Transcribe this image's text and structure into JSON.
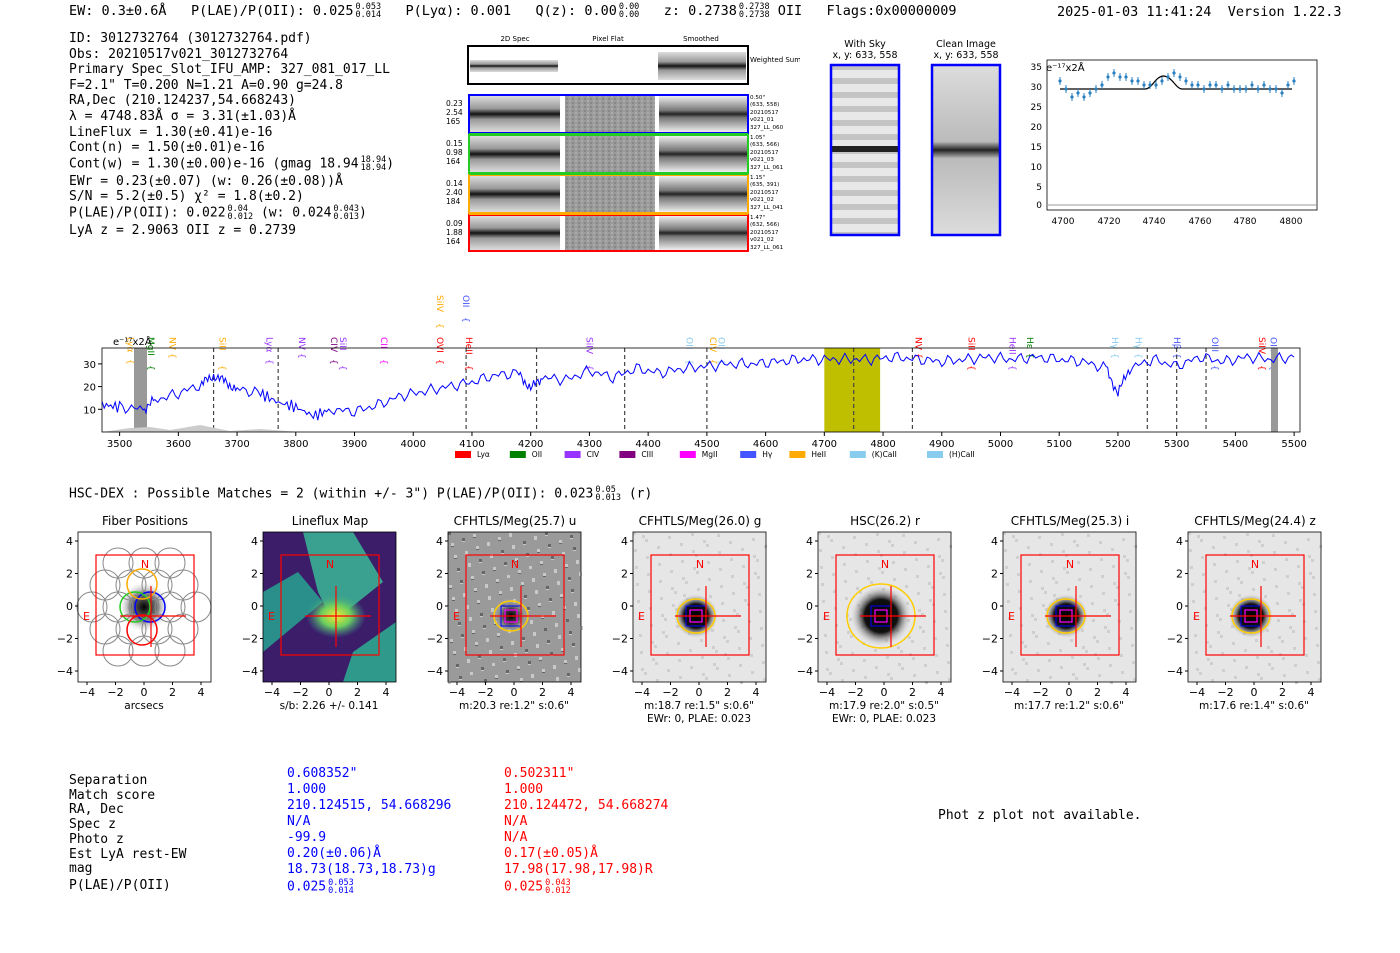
{
  "header": {
    "ew": "EW: 0.3±0.6Å",
    "plae_label": "P(LAE)/P(OII): 0.025",
    "plae_hi": "0.053",
    "plae_lo": "0.014",
    "plya": "P(Lyα): 0.001",
    "qz_label": "Q(z): 0.00",
    "qz_hi": "0.00",
    "qz_lo": "0.00",
    "z_label": "z: 0.2738",
    "z_hi": "0.2738",
    "z_lo": "0.2738",
    "z_line": "OII",
    "flags": "Flags:0x00000009",
    "datetime": "2025-01-03 11:41:24",
    "version": "Version 1.22.3"
  },
  "info": {
    "id": "ID: 3012732764 (3012732764.pdf)",
    "obs": "Obs: 20210517v021_3012732764",
    "primary": "Primary Spec_Slot_IFU_AMP: 327_081_017_LL",
    "fline": "F=2.1\"  T=0.200  N=1.21  A=0.90  g=24.8",
    "radec": "RA,Dec (210.124237,54.668243)",
    "lambda": "λ = 4748.83Å  σ = 3.31(±1.03)Å",
    "lineflux": "LineFlux = 1.30(±0.41)e-16",
    "contn": "Cont(n) = 1.50(±0.01)e-16",
    "contw": "Cont(w) = 1.30(±0.00)e-16 (gmag 18.94",
    "contw_hi": "18.94",
    "contw_lo": "18.94",
    "ewr": "EWr = 0.23(±0.07) (w: 0.26(±0.08))Å",
    "sn": "S/N = 5.2(±0.5)  χ² = 1.8(±0.2)",
    "plae": "P(LAE)/P(OII): 0.022",
    "plae_hi": "0.04",
    "plae_lo": "0.012",
    "plae_w": "(w: 0.024",
    "plae_w_hi": "0.043",
    "plae_w_lo": "0.013",
    "lya_z": "LyA z = 2.9063  OII z = 0.2739"
  },
  "spec2d": {
    "col_headers": [
      "2D Spec",
      "Pixel Flat",
      "Smoothed"
    ],
    "weighted_sum": "Weighted Sum",
    "rows": [
      {
        "left": [
          "0.23",
          "2.54",
          "165"
        ],
        "right": [
          "0.50\"",
          "(633, 558)",
          "20210517",
          "v021_01",
          "327_LL_060"
        ],
        "color": "#0000ff"
      },
      {
        "left": [
          "0.15",
          "0.98",
          "164"
        ],
        "right": [
          "1.05\"",
          "(633, 566)",
          "20210517",
          "v021_03",
          "327_LL_061"
        ],
        "color": "#22cc22"
      },
      {
        "left": [
          "0.14",
          "2.40",
          "184"
        ],
        "right": [
          "1.15\"",
          "(635, 391)",
          "20210517",
          "v021_02",
          "327_LL_041"
        ],
        "color": "#ffaa00"
      },
      {
        "left": [
          "0.09",
          "1.88",
          "164"
        ],
        "right": [
          "1.47\"",
          "(632, 566)",
          "20210517",
          "v021_02",
          "327_LL_061"
        ],
        "color": "#ff0000"
      }
    ]
  },
  "sky": {
    "with_sky_title": "With Sky",
    "with_sky_coords": "x, y: 633, 558",
    "clean_title": "Clean Image",
    "clean_coords": "x, y: 633, 558"
  },
  "zoom_plot": {
    "unit": "e⁻¹⁷x2Å",
    "y_ticks": [
      "35",
      "30",
      "25",
      "20",
      "15",
      "10",
      "5",
      "0"
    ],
    "x_ticks": [
      "4700",
      "4720",
      "4740",
      "4760",
      "4780",
      "4800"
    ]
  },
  "chart_data": {
    "type": "line",
    "title": "",
    "ylabel": "e⁻¹⁷x2Å",
    "xlabel": "",
    "xlim": [
      3470,
      5510
    ],
    "ylim": [
      0,
      37
    ],
    "x_ticks": [
      3500,
      3600,
      3700,
      3800,
      3900,
      4000,
      4100,
      4200,
      4300,
      4400,
      4500,
      4600,
      4700,
      4800,
      4900,
      5000,
      5100,
      5200,
      5300,
      5400,
      5500
    ],
    "y_ticks": [
      10,
      20,
      30
    ],
    "x": [
      3470,
      3500,
      3540,
      3560,
      3600,
      3640,
      3660,
      3680,
      3700,
      3740,
      3770,
      3800,
      3830,
      3860,
      3900,
      3940,
      3980,
      4020,
      4060,
      4100,
      4140,
      4180,
      4200,
      4220,
      4260,
      4300,
      4340,
      4380,
      4420,
      4460,
      4500,
      4540,
      4580,
      4620,
      4660,
      4700,
      4740,
      4780,
      4820,
      4860,
      4900,
      4940,
      4980,
      5020,
      5060,
      5100,
      5140,
      5180,
      5200,
      5220,
      5260,
      5300,
      5340,
      5380,
      5420,
      5460,
      5500
    ],
    "series": [
      {
        "name": "spectrum",
        "color": "#0000ff",
        "values": [
          12,
          11,
          10,
          14,
          17,
          21,
          25,
          22,
          19,
          17,
          13,
          11,
          7,
          10,
          9,
          12,
          16,
          18,
          20,
          22,
          25,
          26,
          19,
          24,
          23,
          27,
          24,
          28,
          26,
          28,
          29,
          30,
          30,
          31,
          32,
          32,
          32,
          32,
          33,
          32,
          31,
          32,
          33,
          32,
          33,
          32,
          31,
          28,
          17,
          28,
          32,
          29,
          33,
          31,
          33,
          32,
          33
        ]
      }
    ],
    "highlight_band": [
      4700,
      4795
    ],
    "dashed_lines": [
      3660,
      3770,
      4090,
      4210,
      4360,
      4500,
      4750,
      4850,
      5250,
      5300,
      5350
    ],
    "line_labels": [
      {
        "text": "Lyα",
        "x": 3508,
        "color": "#ffaa00"
      },
      {
        "text": "MgII",
        "x": 3543,
        "color": "#008000"
      },
      {
        "text": "NV",
        "x": 3580,
        "color": "#ffaa00"
      },
      {
        "text": "SiII",
        "x": 3665,
        "color": "#ffaa00"
      },
      {
        "text": "Lyα",
        "x": 3745,
        "color": "#9933ff"
      },
      {
        "text": "NV",
        "x": 3800,
        "color": "#9933ff"
      },
      {
        "text": "CIV",
        "x": 3855,
        "color": "#800080"
      },
      {
        "text": "SiII",
        "x": 3870,
        "color": "#9933ff"
      },
      {
        "text": "CII",
        "x": 3940,
        "color": "#ff00ff"
      },
      {
        "text": "OVI",
        "x": 4035,
        "color": "#ff0000"
      },
      {
        "text": "SiIV",
        "x": 4035,
        "color": "#ffaa00"
      },
      {
        "text": "HeII",
        "x": 4085,
        "color": "#ff0000"
      },
      {
        "text": "OII",
        "x": 4080,
        "color": "#4455ff"
      },
      {
        "text": "SiIV",
        "x": 4290,
        "color": "#9933ff"
      },
      {
        "text": "OII",
        "x": 4460,
        "color": "#88ccee"
      },
      {
        "text": "CIV",
        "x": 4500,
        "color": "#ffaa00"
      },
      {
        "text": "OII",
        "x": 4515,
        "color": "#88ccee"
      },
      {
        "text": "NV",
        "x": 4850,
        "color": "#ff0000"
      },
      {
        "text": "SiII",
        "x": 4940,
        "color": "#ff0000"
      },
      {
        "text": "HeII",
        "x": 5010,
        "color": "#9933ff"
      },
      {
        "text": "Hε",
        "x": 5040,
        "color": "#008000"
      },
      {
        "text": "Hγ",
        "x": 5185,
        "color": "#88ccee"
      },
      {
        "text": "Hγ",
        "x": 5225,
        "color": "#88ccee"
      },
      {
        "text": "Hβ",
        "x": 5290,
        "color": "#4455ff"
      },
      {
        "text": "OIII",
        "x": 5355,
        "color": "#4455ff"
      },
      {
        "text": "SiIV",
        "x": 5435,
        "color": "#ff0000"
      },
      {
        "text": "OIII",
        "x": 5455,
        "color": "#4455ff"
      }
    ],
    "legend": [
      {
        "name": "Lyα",
        "color": "#ff0000"
      },
      {
        "name": "OII",
        "color": "#008000"
      },
      {
        "name": "CIV",
        "color": "#9933ff"
      },
      {
        "name": "CIII",
        "color": "#800080"
      },
      {
        "name": "MgII",
        "color": "#ff00ff"
      },
      {
        "name": "Hγ",
        "color": "#4455ff"
      },
      {
        "name": "HeII",
        "color": "#ffaa00"
      },
      {
        "name": "(K)CaII",
        "color": "#88ccee"
      },
      {
        "name": "(H)CaII",
        "color": "#88ccee"
      }
    ]
  },
  "hsc": {
    "title": "HSC-DEX : Possible Matches = 2 (within +/- 3\")  P(LAE)/P(OII): 0.023",
    "plae_hi": "0.05",
    "plae_lo": "0.013",
    "band": "(r)"
  },
  "cutouts": [
    {
      "title": "Fiber Positions",
      "foot1": "arcsecs",
      "foot2": "",
      "type": "fibers"
    },
    {
      "title": "Lineflux Map",
      "foot1": "s/b: 2.26 +/- 0.141",
      "foot2": "",
      "type": "lineflux"
    },
    {
      "title": "CFHTLS/Meg(25.7) u",
      "foot1": "m:20.3  re:1.2\"  s:0.6\"",
      "foot2": "",
      "type": "noisy"
    },
    {
      "title": "CFHTLS/Meg(26.0) g",
      "foot1": "m:18.7  re:1.5\"  s:0.6\"",
      "foot2": "EWr: 0, PLAE: 0.023",
      "type": "bright"
    },
    {
      "title": "HSC(26.2) r",
      "foot1": "m:17.9  re:2.0\"  s:0.5\"",
      "foot2": "EWr: 0, PLAE: 0.023",
      "type": "hsc"
    },
    {
      "title": "CFHTLS/Meg(25.3) i",
      "foot1": "m:17.7  re:1.2\"  s:0.6\"",
      "foot2": "",
      "type": "bright"
    },
    {
      "title": "CFHTLS/Meg(24.4) z",
      "foot1": "m:17.6  re:1.4\"  s:0.6\"",
      "foot2": "",
      "type": "bright"
    }
  ],
  "cutout_axes": {
    "y_ticks": [
      "4",
      "2",
      "0",
      "−2",
      "−4"
    ],
    "x_ticks": [
      "−4",
      "−2",
      "0",
      "2",
      "4"
    ],
    "north": "N",
    "east": "E"
  },
  "matches": {
    "labels": [
      "Separation",
      "Match score",
      "RA, Dec",
      "Spec z",
      "Photo z",
      "Est LyA rest-EW",
      "mag",
      "P(LAE)/P(OII)"
    ],
    "m1": [
      "0.608352\"",
      "1.000",
      "210.124515, 54.668296",
      "N/A",
      "-99.9",
      "0.20(±0.06)Å",
      "18.73(18.73,18.73)g",
      "0.025"
    ],
    "m1_plae_hi": "0.053",
    "m1_plae_lo": "0.014",
    "m2": [
      "0.502311\"",
      "1.000",
      "210.124472, 54.668274",
      "N/A",
      "N/A",
      "0.17(±0.05)Å",
      "17.98(17.98,17.98)R",
      "0.025"
    ],
    "m2_plae_hi": "0.043",
    "m2_plae_lo": "0.012",
    "photz_note": "Phot z plot not available."
  }
}
